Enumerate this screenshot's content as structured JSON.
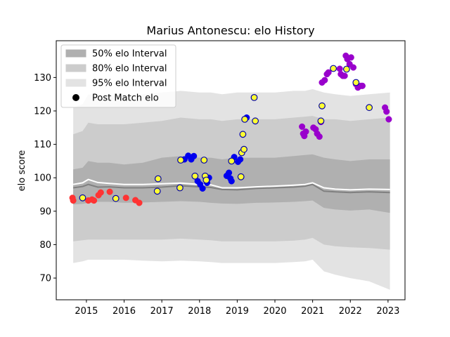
{
  "chart_data": {
    "type": "scatter",
    "title": "Marius Antonescu: elo History",
    "xlabel": "",
    "ylabel": "elo score",
    "xlim": [
      2014.2,
      2023.45
    ],
    "ylim": [
      63.5,
      141.0
    ],
    "x_ticks": [
      2015,
      2016,
      2017,
      2018,
      2019,
      2020,
      2021,
      2022,
      2023
    ],
    "x_tick_labels": [
      "2015",
      "2016",
      "2017",
      "2018",
      "2019",
      "2020",
      "2021",
      "2022",
      "2023"
    ],
    "y_ticks": [
      70,
      80,
      90,
      100,
      110,
      120,
      130
    ],
    "y_tick_labels": [
      "70",
      "80",
      "90",
      "100",
      "110",
      "120",
      "130"
    ],
    "grid": false,
    "legend": {
      "placement": "upper-left",
      "entries": [
        {
          "label": "50% elo Interval",
          "color": "#b0b0b0"
        },
        {
          "label": "80% elo Interval",
          "color": "#cccccc"
        },
        {
          "label": "95% elo Interval",
          "color": "#e3e3e3"
        },
        {
          "label": "Post Match elo",
          "color": "#000000"
        }
      ]
    },
    "bands": {
      "x": [
        2014.65,
        2014.9,
        2015.05,
        2015.3,
        2015.6,
        2016.0,
        2016.5,
        2017.0,
        2017.5,
        2018.0,
        2018.3,
        2018.6,
        2019.0,
        2019.5,
        2020.0,
        2020.5,
        2020.8,
        2021.0,
        2021.3,
        2021.6,
        2022.0,
        2022.5,
        2023.05
      ],
      "median": [
        97.0,
        97.4,
        98.0,
        97.2,
        97.3,
        97.0,
        97.0,
        97.2,
        97.6,
        97.3,
        97.1,
        96.5,
        96.4,
        96.8,
        97.0,
        97.2,
        97.5,
        98.0,
        96.0,
        95.8,
        95.6,
        95.8,
        95.6
      ],
      "p50": [
        [
          92.0,
          102.5
        ],
        [
          92.2,
          103.0
        ],
        [
          92.5,
          105.0
        ],
        [
          92.8,
          104.5
        ],
        [
          92.8,
          104.5
        ],
        [
          92.5,
          104.0
        ],
        [
          92.6,
          104.5
        ],
        [
          92.8,
          106.0
        ],
        [
          93.0,
          106.5
        ],
        [
          92.8,
          106.0
        ],
        [
          92.5,
          106.0
        ],
        [
          92.3,
          105.5
        ],
        [
          92.2,
          106.0
        ],
        [
          92.5,
          106.0
        ],
        [
          92.6,
          106.0
        ],
        [
          92.8,
          106.5
        ],
        [
          93.0,
          106.8
        ],
        [
          93.2,
          107.0
        ],
        [
          91.0,
          106.0
        ],
        [
          90.5,
          105.5
        ],
        [
          90.2,
          105.0
        ],
        [
          90.5,
          105.5
        ],
        [
          89.5,
          105.5
        ]
      ],
      "p80": [
        [
          81.0,
          113.0
        ],
        [
          81.3,
          114.0
        ],
        [
          81.5,
          116.5
        ],
        [
          81.5,
          116.0
        ],
        [
          81.5,
          116.0
        ],
        [
          81.5,
          116.0
        ],
        [
          81.5,
          116.5
        ],
        [
          81.5,
          117.0
        ],
        [
          81.8,
          118.0
        ],
        [
          81.5,
          117.5
        ],
        [
          81.3,
          117.5
        ],
        [
          81.0,
          117.0
        ],
        [
          81.0,
          117.5
        ],
        [
          81.0,
          117.5
        ],
        [
          81.0,
          117.5
        ],
        [
          81.2,
          118.0
        ],
        [
          81.5,
          118.3
        ],
        [
          82.0,
          118.5
        ],
        [
          80.0,
          117.5
        ],
        [
          79.5,
          117.5
        ],
        [
          79.2,
          117.0
        ],
        [
          79.0,
          117.5
        ],
        [
          78.5,
          118.0
        ]
      ],
      "p95": [
        [
          74.5,
          121.0
        ],
        [
          75.0,
          122.0
        ],
        [
          75.5,
          125.0
        ],
        [
          75.5,
          124.5
        ],
        [
          75.5,
          124.5
        ],
        [
          75.5,
          124.5
        ],
        [
          75.2,
          125.0
        ],
        [
          75.0,
          125.5
        ],
        [
          75.2,
          126.0
        ],
        [
          75.0,
          125.5
        ],
        [
          74.8,
          125.5
        ],
        [
          74.5,
          125.0
        ],
        [
          74.5,
          125.5
        ],
        [
          74.5,
          125.5
        ],
        [
          74.5,
          125.5
        ],
        [
          74.8,
          126.0
        ],
        [
          75.0,
          126.0
        ],
        [
          75.5,
          126.5
        ],
        [
          72.0,
          125.5
        ],
        [
          71.0,
          125.0
        ],
        [
          70.0,
          124.5
        ],
        [
          69.0,
          125.0
        ],
        [
          66.5,
          125.5
        ]
      ]
    },
    "post_match_line": {
      "x": [
        2014.65,
        2014.9,
        2015.05,
        2015.3,
        2015.6,
        2016.0,
        2016.5,
        2017.0,
        2017.5,
        2018.0,
        2018.3,
        2018.6,
        2019.0,
        2019.5,
        2020.0,
        2020.5,
        2020.8,
        2021.0,
        2021.3,
        2021.6,
        2022.0,
        2022.5,
        2023.05
      ],
      "y": [
        98.0,
        98.5,
        99.5,
        98.6,
        98.3,
        98.0,
        98.0,
        98.2,
        98.4,
        98.0,
        97.9,
        97.0,
        97.0,
        97.3,
        97.5,
        97.8,
        98.0,
        98.5,
        97.0,
        96.6,
        96.4,
        96.6,
        96.5
      ]
    },
    "series": [
      {
        "color": "#ff3333",
        "points": [
          [
            2014.63,
            94.0
          ],
          [
            2014.65,
            93.2
          ],
          [
            2014.9,
            94.0
          ],
          [
            2015.05,
            93.2
          ],
          [
            2015.15,
            93.5
          ],
          [
            2015.2,
            93.2
          ],
          [
            2015.32,
            94.8
          ],
          [
            2015.38,
            95.6
          ],
          [
            2015.62,
            95.8
          ],
          [
            2016.05,
            94.0
          ],
          [
            2016.3,
            93.3
          ],
          [
            2016.4,
            92.5
          ]
        ]
      },
      {
        "color": "#0000ee",
        "points": [
          [
            2017.48,
            97.0
          ],
          [
            2017.6,
            105.5
          ],
          [
            2017.7,
            106.6
          ],
          [
            2017.78,
            105.5
          ],
          [
            2017.85,
            106.5
          ],
          [
            2017.95,
            99.0
          ],
          [
            2018.02,
            98.0
          ],
          [
            2018.08,
            96.8
          ],
          [
            2018.2,
            98.5
          ],
          [
            2018.25,
            100.0
          ],
          [
            2018.72,
            100.6
          ],
          [
            2018.78,
            101.5
          ],
          [
            2018.82,
            99.8
          ],
          [
            2018.85,
            99.0
          ],
          [
            2018.92,
            106.2
          ],
          [
            2019.02,
            104.8
          ],
          [
            2019.08,
            105.5
          ],
          [
            2019.2,
            117.5
          ],
          [
            2019.25,
            118.0
          ]
        ]
      },
      {
        "color": "#9900cc",
        "points": [
          [
            2020.72,
            115.3
          ],
          [
            2020.75,
            113.2
          ],
          [
            2020.78,
            112.5
          ],
          [
            2020.82,
            113.8
          ],
          [
            2021.02,
            115.0
          ],
          [
            2021.08,
            114.5
          ],
          [
            2021.12,
            113.2
          ],
          [
            2021.18,
            112.3
          ],
          [
            2021.22,
            116.7
          ],
          [
            2021.25,
            128.5
          ],
          [
            2021.32,
            129.2
          ],
          [
            2021.38,
            131.0
          ],
          [
            2021.42,
            131.5
          ],
          [
            2021.72,
            132.6
          ],
          [
            2021.75,
            131.0
          ],
          [
            2021.8,
            130.5
          ],
          [
            2021.85,
            130.5
          ],
          [
            2021.88,
            136.5
          ],
          [
            2021.92,
            135.5
          ],
          [
            2021.98,
            134.0
          ],
          [
            2022.02,
            136.0
          ],
          [
            2022.08,
            133.0
          ],
          [
            2022.15,
            128.0
          ],
          [
            2022.2,
            127.0
          ],
          [
            2022.28,
            127.5
          ],
          [
            2022.32,
            127.5
          ],
          [
            2022.92,
            121.0
          ],
          [
            2022.96,
            119.8
          ],
          [
            2023.02,
            117.5
          ]
        ]
      },
      {
        "color": "#ffff33",
        "edge": "#0000aa",
        "points": [
          [
            2014.9,
            94.0
          ],
          [
            2015.78,
            93.8
          ],
          [
            2016.88,
            96.0
          ],
          [
            2016.9,
            99.7
          ],
          [
            2017.48,
            97.0
          ],
          [
            2017.5,
            105.3
          ],
          [
            2017.88,
            100.5
          ],
          [
            2018.12,
            105.3
          ],
          [
            2018.15,
            100.5
          ],
          [
            2018.18,
            99.3
          ],
          [
            2018.85,
            105.0
          ],
          [
            2019.1,
            100.3
          ],
          [
            2019.12,
            107.5
          ],
          [
            2019.18,
            108.5
          ],
          [
            2019.15,
            113.0
          ],
          [
            2019.2,
            117.5
          ],
          [
            2019.45,
            124.0
          ],
          [
            2019.48,
            117.0
          ],
          [
            2021.22,
            117.0
          ],
          [
            2021.25,
            121.5
          ],
          [
            2021.55,
            132.7
          ],
          [
            2021.9,
            132.5
          ],
          [
            2022.15,
            128.5
          ],
          [
            2022.5,
            121.0
          ]
        ]
      }
    ]
  }
}
